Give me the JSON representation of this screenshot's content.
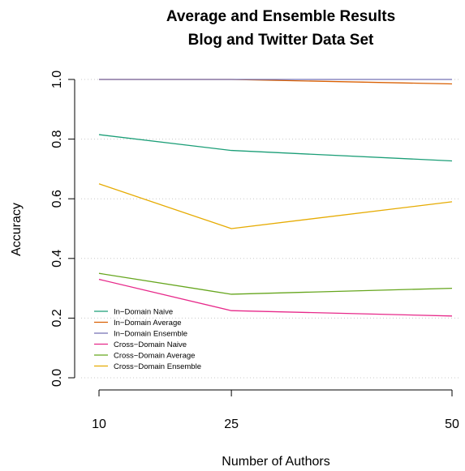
{
  "chart_data": {
    "type": "line",
    "title": "Average and Ensemble Results",
    "subtitle": "Blog and Twitter Data Set",
    "xlabel": "Number of Authors",
    "ylabel": "Accuracy",
    "x": [
      10,
      25,
      50
    ],
    "x_tick_labels": [
      "10",
      "25",
      "50"
    ],
    "ylim": [
      0.0,
      1.0
    ],
    "y_ticks": [
      0.0,
      0.2,
      0.4,
      0.6,
      0.8,
      1.0
    ],
    "y_tick_labels": [
      "0.0",
      "0.2",
      "0.4",
      "0.6",
      "0.8",
      "1.0"
    ],
    "grid": "horizontal-dotted",
    "legend_position": "bottom-left",
    "series": [
      {
        "name": "In−Domain Naive",
        "color": "#1b9e77",
        "values": [
          0.815,
          0.762,
          0.727
        ]
      },
      {
        "name": "In−Domain Average",
        "color": "#d95f02",
        "values": [
          1.0,
          1.0,
          0.985
        ]
      },
      {
        "name": "In−Domain Ensemble",
        "color": "#7570b3",
        "values": [
          1.0,
          1.0,
          1.0
        ]
      },
      {
        "name": "Cross−Domain Naive",
        "color": "#e7298a",
        "values": [
          0.33,
          0.225,
          0.207
        ]
      },
      {
        "name": "Cross−Domain Average",
        "color": "#66a61e",
        "values": [
          0.35,
          0.28,
          0.3
        ]
      },
      {
        "name": "Cross−Domain Ensemble",
        "color": "#e6ab02",
        "values": [
          0.65,
          0.5,
          0.59
        ]
      }
    ]
  }
}
